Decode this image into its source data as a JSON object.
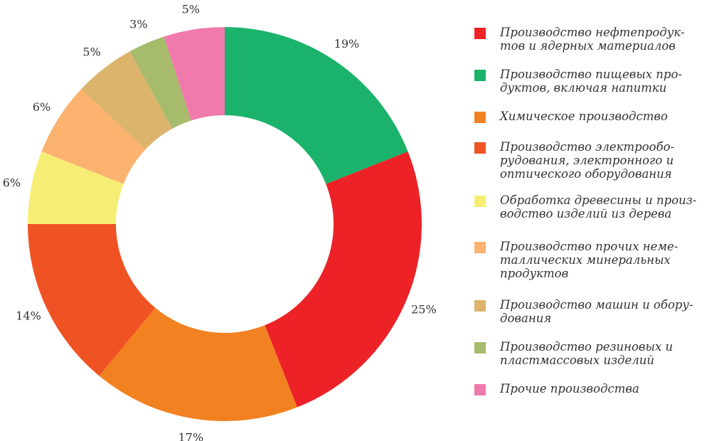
{
  "chart_data": {
    "type": "pie",
    "categories": [
      "Производство нефтепродук-\nтов и ядерных материалов",
      "Производство пищевых про-\nдуктов, включая напитки",
      "Химическое производство",
      "Производство электрообо-\nрудования, электронного и\nоптического оборудования",
      "Обработка древесины и произ-\nводство изделий из дерева",
      "Производство прочих неме-\nталлических минеральных\nпродуктов",
      "Производство машин и обору-\nдования",
      "Производство резиновых и\nпластмассовых изделий",
      "Прочие производства"
    ],
    "values": [
      25,
      19,
      17,
      14,
      6,
      6,
      5,
      3,
      5
    ],
    "value_labels": [
      "25%",
      "19%",
      "17%",
      "14%",
      "6%",
      "6%",
      "5%",
      "3%",
      "5%"
    ],
    "colors": [
      "#ec2227",
      "#1bb36b",
      "#f28121",
      "#ef5323",
      "#f6ee74",
      "#fbb36f",
      "#dcb46c",
      "#a6bb6b",
      "#f07aab"
    ]
  }
}
